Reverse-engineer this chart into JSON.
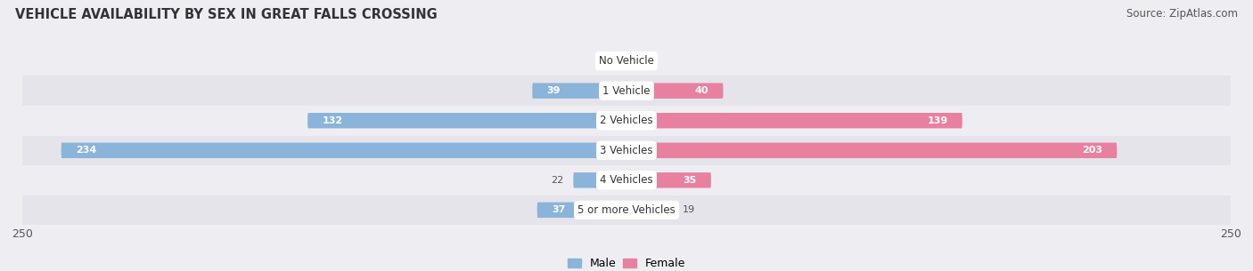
{
  "title": "VEHICLE AVAILABILITY BY SEX IN GREAT FALLS CROSSING",
  "source": "Source: ZipAtlas.com",
  "categories": [
    "No Vehicle",
    "1 Vehicle",
    "2 Vehicles",
    "3 Vehicles",
    "4 Vehicles",
    "5 or more Vehicles"
  ],
  "male_values": [
    0,
    39,
    132,
    234,
    22,
    37
  ],
  "female_values": [
    0,
    40,
    139,
    203,
    35,
    19
  ],
  "max_value": 250,
  "male_color": "#8ab4d9",
  "female_color": "#e880a0",
  "male_label": "Male",
  "female_label": "Female",
  "label_color_inside": "#ffffff",
  "label_color_outside": "#555555",
  "title_fontsize": 10.5,
  "source_fontsize": 8.5,
  "bar_height": 0.52,
  "row_bg_light": "#eeeef2",
  "row_bg_dark": "#e4e4ea",
  "fig_bg_color": "#eeeef2"
}
